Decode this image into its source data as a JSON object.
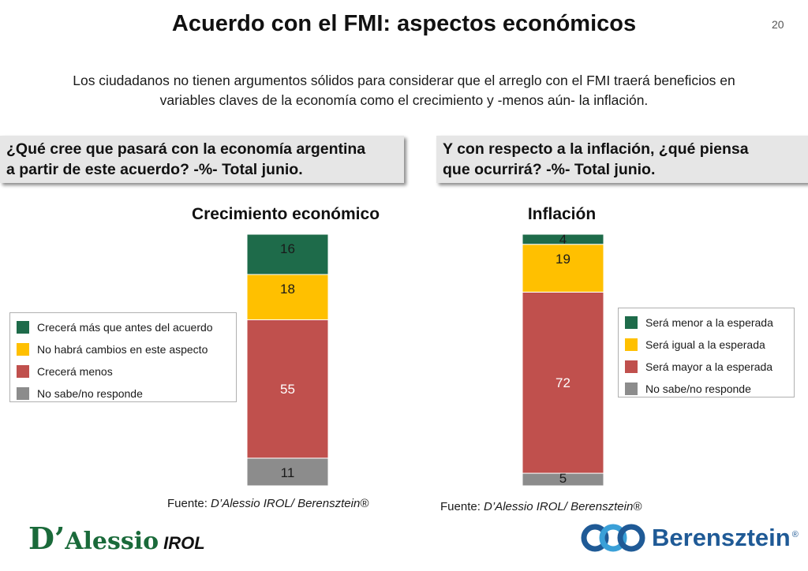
{
  "slide": {
    "title": "Acuerdo con el FMI: aspectos económicos",
    "page_number": "20",
    "subtitle_line1": "Los ciudadanos no tienen argumentos sólidos para considerar que el arreglo con el FMI traerá beneficios en",
    "subtitle_line2": "variables claves de la economía como el crecimiento y -menos aún- la inflación."
  },
  "questions": {
    "left_line1": "¿Qué cree que pasará con la economía argentina",
    "left_line2": "a partir de este acuerdo? -%- Total junio.",
    "right_line1": "Y con respecto a la inflación, ¿qué piensa",
    "right_line2": "que ocurrirá? -%- Total junio."
  },
  "sources": {
    "left_prefix": "Fuente: ",
    "left_italic": "D’Alessio IROL/ Berensztein®",
    "right_prefix": "Fuente: ",
    "right_italic": "D’Alessio IROL/ Berensztein®"
  },
  "logos": {
    "left_d": "D’",
    "left_alessio": "Alessio",
    "left_irol": "IROL",
    "right_word": "Berensztein",
    "right_reg": "®"
  },
  "chart_data": [
    {
      "type": "bar",
      "stacked": true,
      "title": "Crecimiento económico",
      "categories": [
        "Crecimiento económico"
      ],
      "ylim": [
        0,
        100
      ],
      "series": [
        {
          "name": "No sabe/no responde",
          "values": [
            11
          ],
          "color": "#8c8c8c"
        },
        {
          "name": "Crecerá menos",
          "values": [
            55
          ],
          "color": "#c0504d"
        },
        {
          "name": "No habrá cambios en este aspecto",
          "values": [
            18
          ],
          "color": "#ffc000"
        },
        {
          "name": "Crecerá más que antes del acuerdo",
          "values": [
            16
          ],
          "color": "#1e6b4a"
        }
      ],
      "legend": [
        "Crecerá más que antes del acuerdo",
        "No habrá cambios en este aspecto",
        "Crecerá menos",
        "No sabe/no responde"
      ],
      "legend_position": "left"
    },
    {
      "type": "bar",
      "stacked": true,
      "title": "Inflación",
      "categories": [
        "Inflación"
      ],
      "ylim": [
        0,
        100
      ],
      "series": [
        {
          "name": "No sabe/no responde",
          "values": [
            5
          ],
          "color": "#8c8c8c"
        },
        {
          "name": "Será mayor a la esperada",
          "values": [
            72
          ],
          "color": "#c0504d"
        },
        {
          "name": "Será igual a la esperada",
          "values": [
            19
          ],
          "color": "#ffc000"
        },
        {
          "name": "Será menor a la esperada",
          "values": [
            4
          ],
          "color": "#1e6b4a"
        }
      ],
      "legend": [
        "Será menor a la esperada",
        "Será igual a la esperada",
        "Será mayor a la esperada",
        "No sabe/no responde"
      ],
      "legend_position": "right"
    }
  ]
}
